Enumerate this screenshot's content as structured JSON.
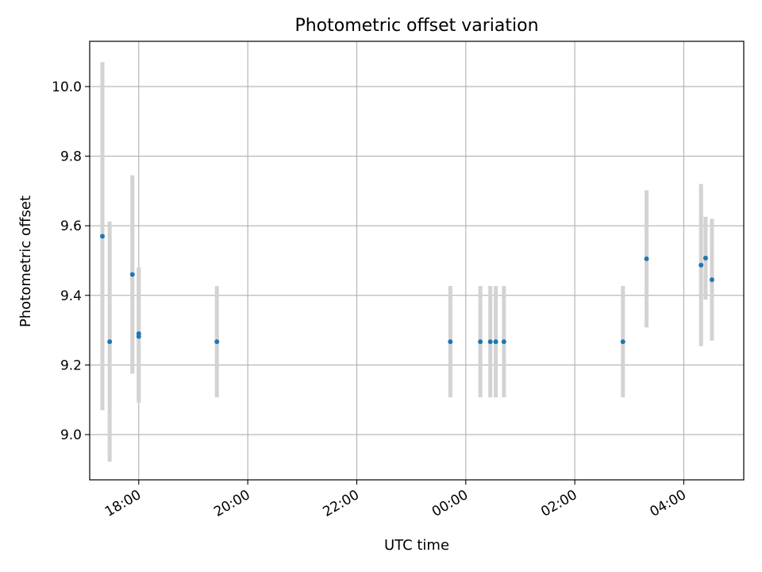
{
  "chart_data": {
    "type": "scatter",
    "title": "Photometric offset variation",
    "xlabel": "UTC time",
    "ylabel": "Photometric offset",
    "xlim": [
      "17:06",
      "05:06"
    ],
    "ylim": [
      8.87,
      10.13
    ],
    "grid": true,
    "legend": "none",
    "x_ticks": [
      "18:00",
      "20:00",
      "22:00",
      "00:00",
      "02:00",
      "04:00"
    ],
    "y_ticks": [
      "9.0",
      "9.2",
      "9.4",
      "9.6",
      "9.8",
      "10.0"
    ],
    "colors": {
      "point": "#1f77b4",
      "errorbar": "#d3d3d3",
      "grid": "#b0b0b0"
    },
    "points": [
      {
        "x": "17:20",
        "y": 9.57,
        "yerr": 0.5
      },
      {
        "x": "17:28",
        "y": 9.267,
        "yerr": 0.345
      },
      {
        "x": "17:53",
        "y": 9.46,
        "yerr": 0.285
      },
      {
        "x": "18:00",
        "y": 9.29,
        "yerr": 0.19
      },
      {
        "x": "18:00",
        "y": 9.282,
        "yerr": 0.19
      },
      {
        "x": "19:26",
        "y": 9.267,
        "yerr": 0.16
      },
      {
        "x": "23:43",
        "y": 9.267,
        "yerr": 0.16
      },
      {
        "x": "00:16",
        "y": 9.267,
        "yerr": 0.16
      },
      {
        "x": "00:27",
        "y": 9.267,
        "yerr": 0.16
      },
      {
        "x": "00:33",
        "y": 9.267,
        "yerr": 0.16
      },
      {
        "x": "00:42",
        "y": 9.267,
        "yerr": 0.16
      },
      {
        "x": "02:53",
        "y": 9.267,
        "yerr": 0.16
      },
      {
        "x": "03:19",
        "y": 9.505,
        "yerr": 0.197
      },
      {
        "x": "04:19",
        "y": 9.487,
        "yerr": 0.233
      },
      {
        "x": "04:24",
        "y": 9.507,
        "yerr": 0.119
      },
      {
        "x": "04:31",
        "y": 9.445,
        "yerr": 0.175
      }
    ]
  }
}
